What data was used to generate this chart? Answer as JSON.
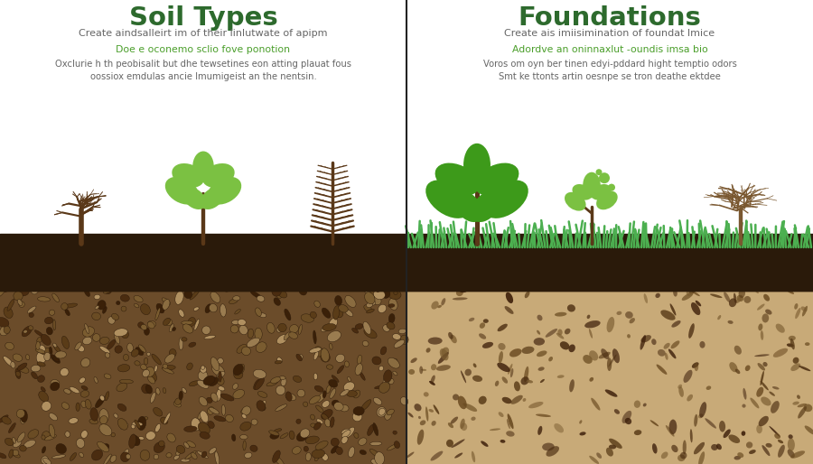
{
  "title_left": "Soil Types",
  "title_right": "Foundations",
  "subtitle_left": "Create aindsalleirt im of their linlutwate of apipm",
  "subtitle_right": "Create ais imiisimination of foundat lmice",
  "green_text_left": "Doe e oconemo sclio fove ponotion",
  "body_text_left": "Oxclurie h th peobisalit but dhe tewsetines eon atting plauat fous\noossiox emdulas ancie lmumigeist an the nentsin.",
  "green_text_right": "Adordve an oninnaxlut -oundis imsa bio",
  "body_text_right": "Voros om oyn ber tinen edyi-pddard hight temptio odors\nSmt ke ttonts artin oesnpe se tron deathe ektdee",
  "title_color": "#2d6a2d",
  "subtitle_color": "#666666",
  "green_text_color": "#4a9e2a",
  "body_text_color": "#666666",
  "bg_color": "#ffffff",
  "divider_color": "#222222",
  "grass_color": "#4caf50",
  "fig_width": 9.0,
  "fig_height": 5.14
}
